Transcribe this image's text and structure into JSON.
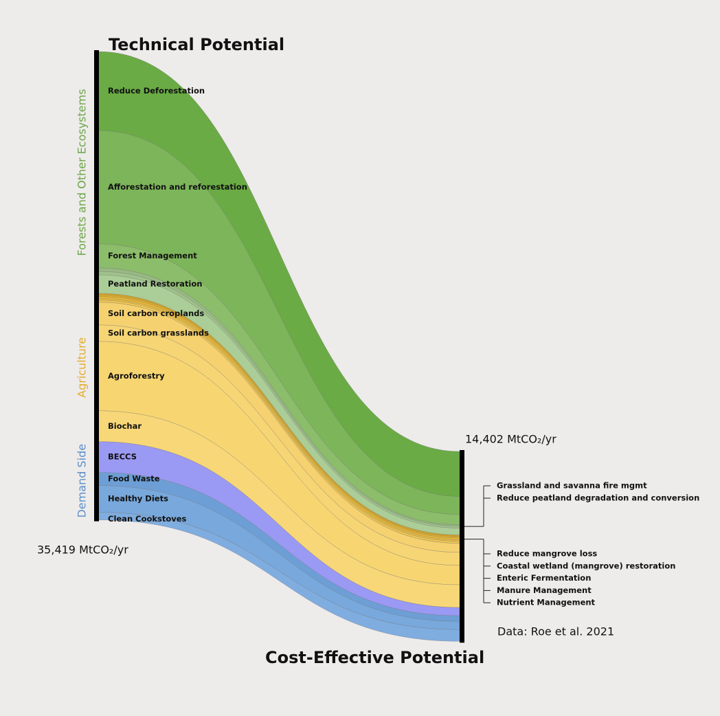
{
  "chart_data": {
    "type": "sankey",
    "title": "Technical Potential",
    "right_title": "Cost-Effective Potential",
    "source": "Data: Roe et al. 2021",
    "left_total": {
      "value": 35419,
      "label": "35,419 MtCO₂/yr"
    },
    "right_total": {
      "value": 14402,
      "label": "14,402 MtCO₂/yr"
    },
    "groups": [
      {
        "name": "Forests and Other Ecosystems",
        "color": "#6aa647"
      },
      {
        "name": "Agriculture",
        "color": "#e3ad2a"
      },
      {
        "name": "Demand Side",
        "color": "#5b8fc9"
      }
    ],
    "flows": [
      {
        "name": "Reduce Deforestation",
        "group": 0,
        "color": "#6aab45",
        "technical": 5970,
        "cost_effective": 3400,
        "label_side": "left"
      },
      {
        "name": "Afforestation and reforestation",
        "group": 0,
        "color": "#7db55a",
        "technical": 8570,
        "cost_effective": 1360,
        "label_side": "left"
      },
      {
        "name": "Forest Management",
        "group": 0,
        "color": "#8cbd6a",
        "technical": 1820,
        "cost_effective": 785,
        "label_side": "left"
      },
      {
        "name": "Grassland and savanna fire mgmt",
        "group": 0,
        "color": "#98b983",
        "technical": 260,
        "cost_effective": 100,
        "label_side": "right"
      },
      {
        "name": "Reduce peatland degradation and conversion",
        "group": 0,
        "color": "#9fc28a",
        "technical": 260,
        "cost_effective": 150,
        "label_side": "right"
      },
      {
        "name": "Peatland Restoration",
        "group": 0,
        "color": "#abcd97",
        "technical": 1400,
        "cost_effective": 520,
        "label_side": "left"
      },
      {
        "name": "Reduce mangrove loss",
        "group": 1,
        "color": "#d9a520",
        "technical": 120,
        "cost_effective": 110,
        "label_side": "right"
      },
      {
        "name": "Coastal wetland (mangrove) restoration",
        "group": 1,
        "color": "#e3b12a",
        "technical": 120,
        "cost_effective": 110,
        "label_side": "right"
      },
      {
        "name": "Enteric Fermentation",
        "group": 1,
        "color": "#e8b834",
        "technical": 160,
        "cost_effective": 140,
        "label_side": "right"
      },
      {
        "name": "Manure Management",
        "group": 1,
        "color": "#edc046",
        "technical": 115,
        "cost_effective": 110,
        "label_side": "right"
      },
      {
        "name": "Nutrient Management",
        "group": 1,
        "color": "#f0c650",
        "technical": 160,
        "cost_effective": 160,
        "label_side": "right"
      },
      {
        "name": "Soil carbon croplands",
        "group": 1,
        "color": "#f5d170",
        "technical": 1710,
        "cost_effective": 680,
        "label_side": "left"
      },
      {
        "name": "Soil carbon grasslands",
        "group": 1,
        "color": "#f6d574",
        "technical": 1245,
        "cost_effective": 990,
        "label_side": "left"
      },
      {
        "name": "Agroforestry",
        "group": 1,
        "color": "#f7d672",
        "technical": 5240,
        "cost_effective": 1460,
        "label_side": "left"
      },
      {
        "name": "Biochar",
        "group": 1,
        "color": "#f7d778",
        "technical": 2335,
        "cost_effective": 1720,
        "label_side": "left"
      },
      {
        "name": "BECCS",
        "group": 2,
        "color": "#9a99f3",
        "technical": 2335,
        "cost_effective": 625,
        "label_side": "left"
      },
      {
        "name": "Food Waste",
        "group": 2,
        "color": "#6d9fd6",
        "technical": 985,
        "cost_effective": 420,
        "label_side": "left"
      },
      {
        "name": "Healthy Diets",
        "group": 2,
        "color": "#78a8dc",
        "technical": 2025,
        "cost_effective": 625,
        "label_side": "left"
      },
      {
        "name": "Clean Cookstoves",
        "group": 2,
        "color": "#80addf",
        "technical": 570,
        "cost_effective": 885,
        "label_side": "left"
      }
    ]
  }
}
